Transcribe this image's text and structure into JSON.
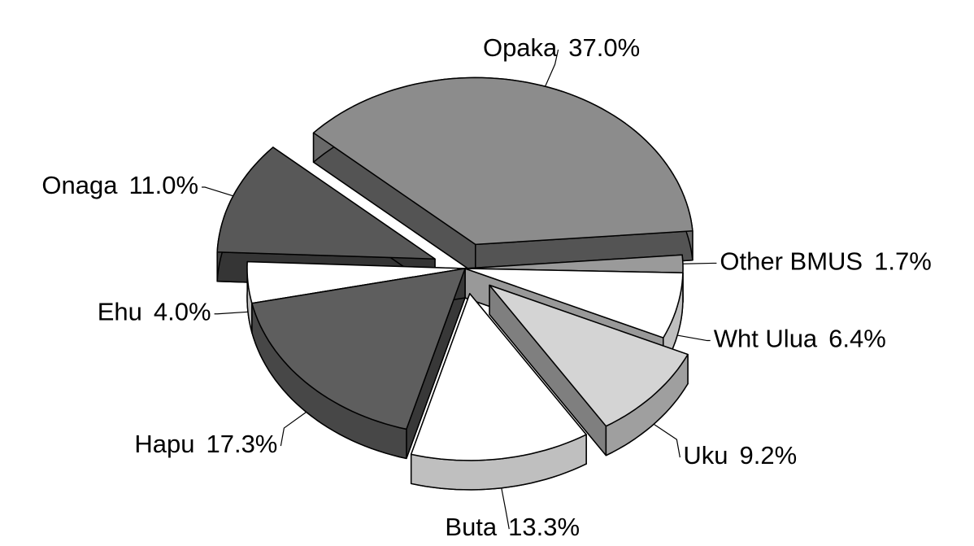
{
  "chart_data": {
    "type": "pie",
    "categories": [
      "Opaka",
      "Other BMUS",
      "Wht Ulua",
      "Uku",
      "Buta",
      "Hapu",
      "Ehu",
      "Onaga"
    ],
    "values": [
      37.0,
      1.7,
      6.4,
      9.2,
      13.3,
      17.3,
      4.0,
      11.0
    ],
    "value_labels": [
      "37.0%",
      "1.7%",
      "6.4%",
      "9.2%",
      "13.3%",
      "17.3%",
      "4.0%",
      "11.0%"
    ],
    "colors": [
      "#8c8c8c",
      "#9a9a9a",
      "#ffffff",
      "#d4d4d4",
      "#ffffff",
      "#5e5e5e",
      "#ffffff",
      "#585858"
    ],
    "explode": [
      true,
      false,
      false,
      true,
      true,
      false,
      false,
      true
    ],
    "three_d": true
  }
}
